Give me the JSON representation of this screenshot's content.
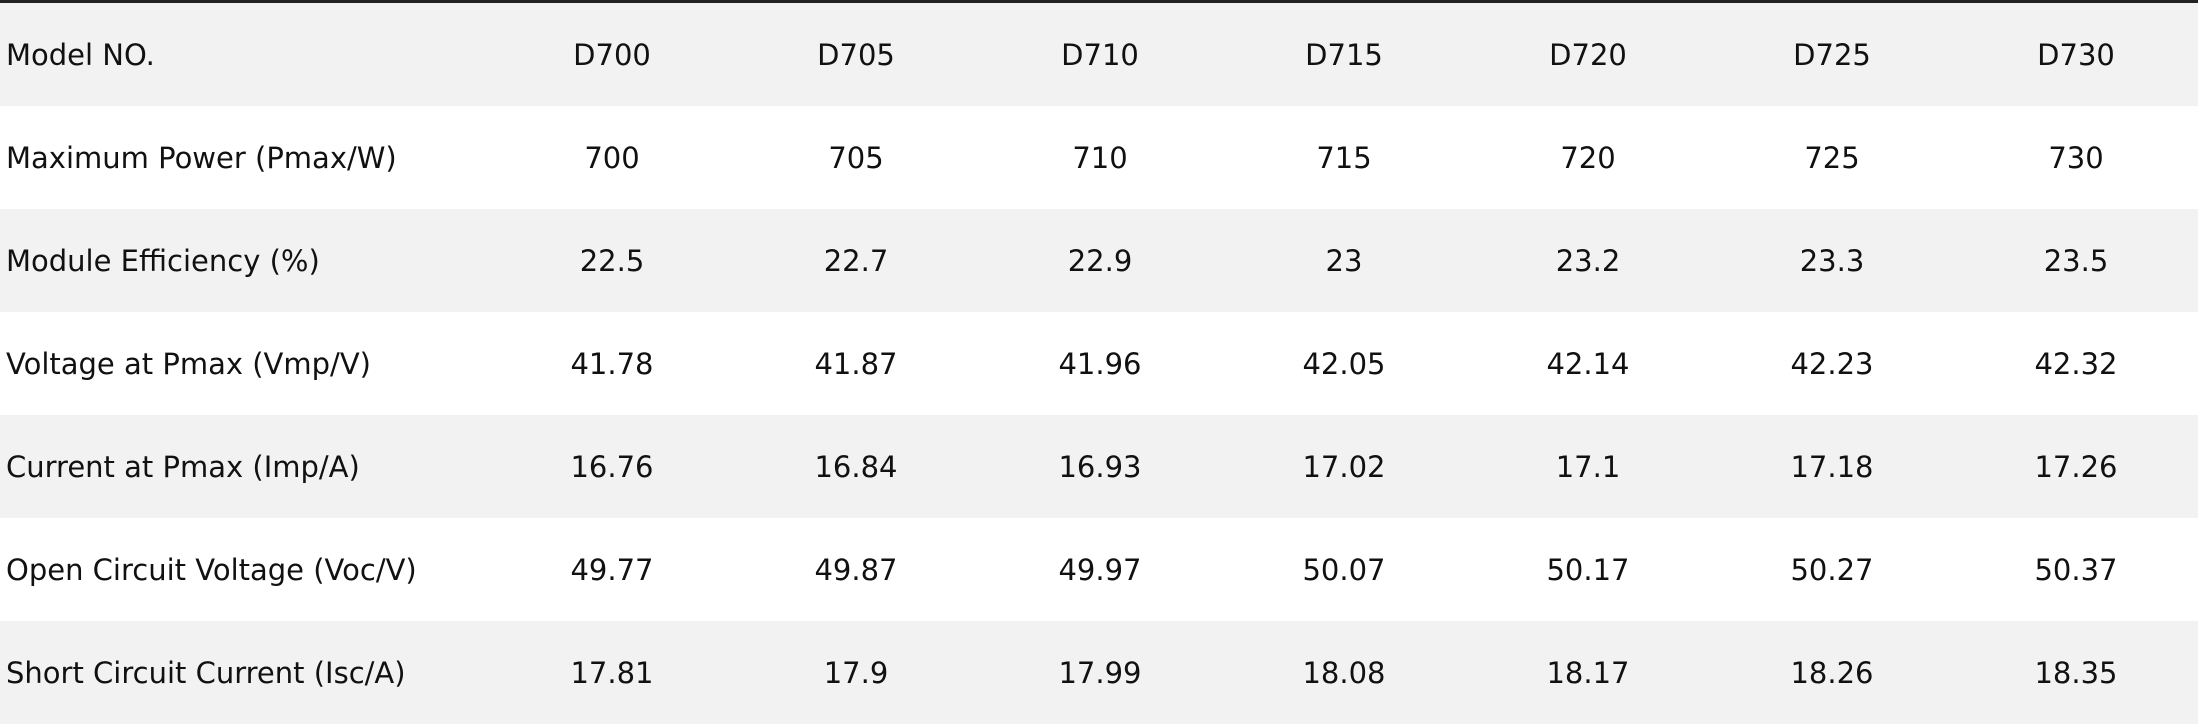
{
  "table": {
    "rows": [
      [
        "Model NO.",
        "D700",
        "D705",
        "D710",
        "D715",
        "D720",
        "D725",
        "D730"
      ],
      [
        "Maximum Power (Pmax/W)",
        "700",
        "705",
        "710",
        "715",
        "720",
        "725",
        "730"
      ],
      [
        "Module Efficiency (%)",
        "22.5",
        "22.7",
        "22.9",
        "23",
        "23.2",
        "23.3",
        "23.5"
      ],
      [
        "Voltage at Pmax (Vmp/V)",
        "41.78",
        "41.87",
        "41.96",
        "42.05",
        "42.14",
        "42.23",
        "42.32"
      ],
      [
        "Current at Pmax (Imp/A)",
        "16.76",
        "16.84",
        "16.93",
        "17.02",
        "17.1",
        "17.18",
        "17.26"
      ],
      [
        "Open Circuit Voltage (Voc/V)",
        "49.77",
        "49.87",
        "49.97",
        "50.07",
        "50.17",
        "50.27",
        "50.37"
      ],
      [
        "Short Circuit Current (Isc/A)",
        "17.81",
        "17.9",
        "17.99",
        "18.08",
        "18.17",
        "18.26",
        "18.35"
      ]
    ]
  }
}
